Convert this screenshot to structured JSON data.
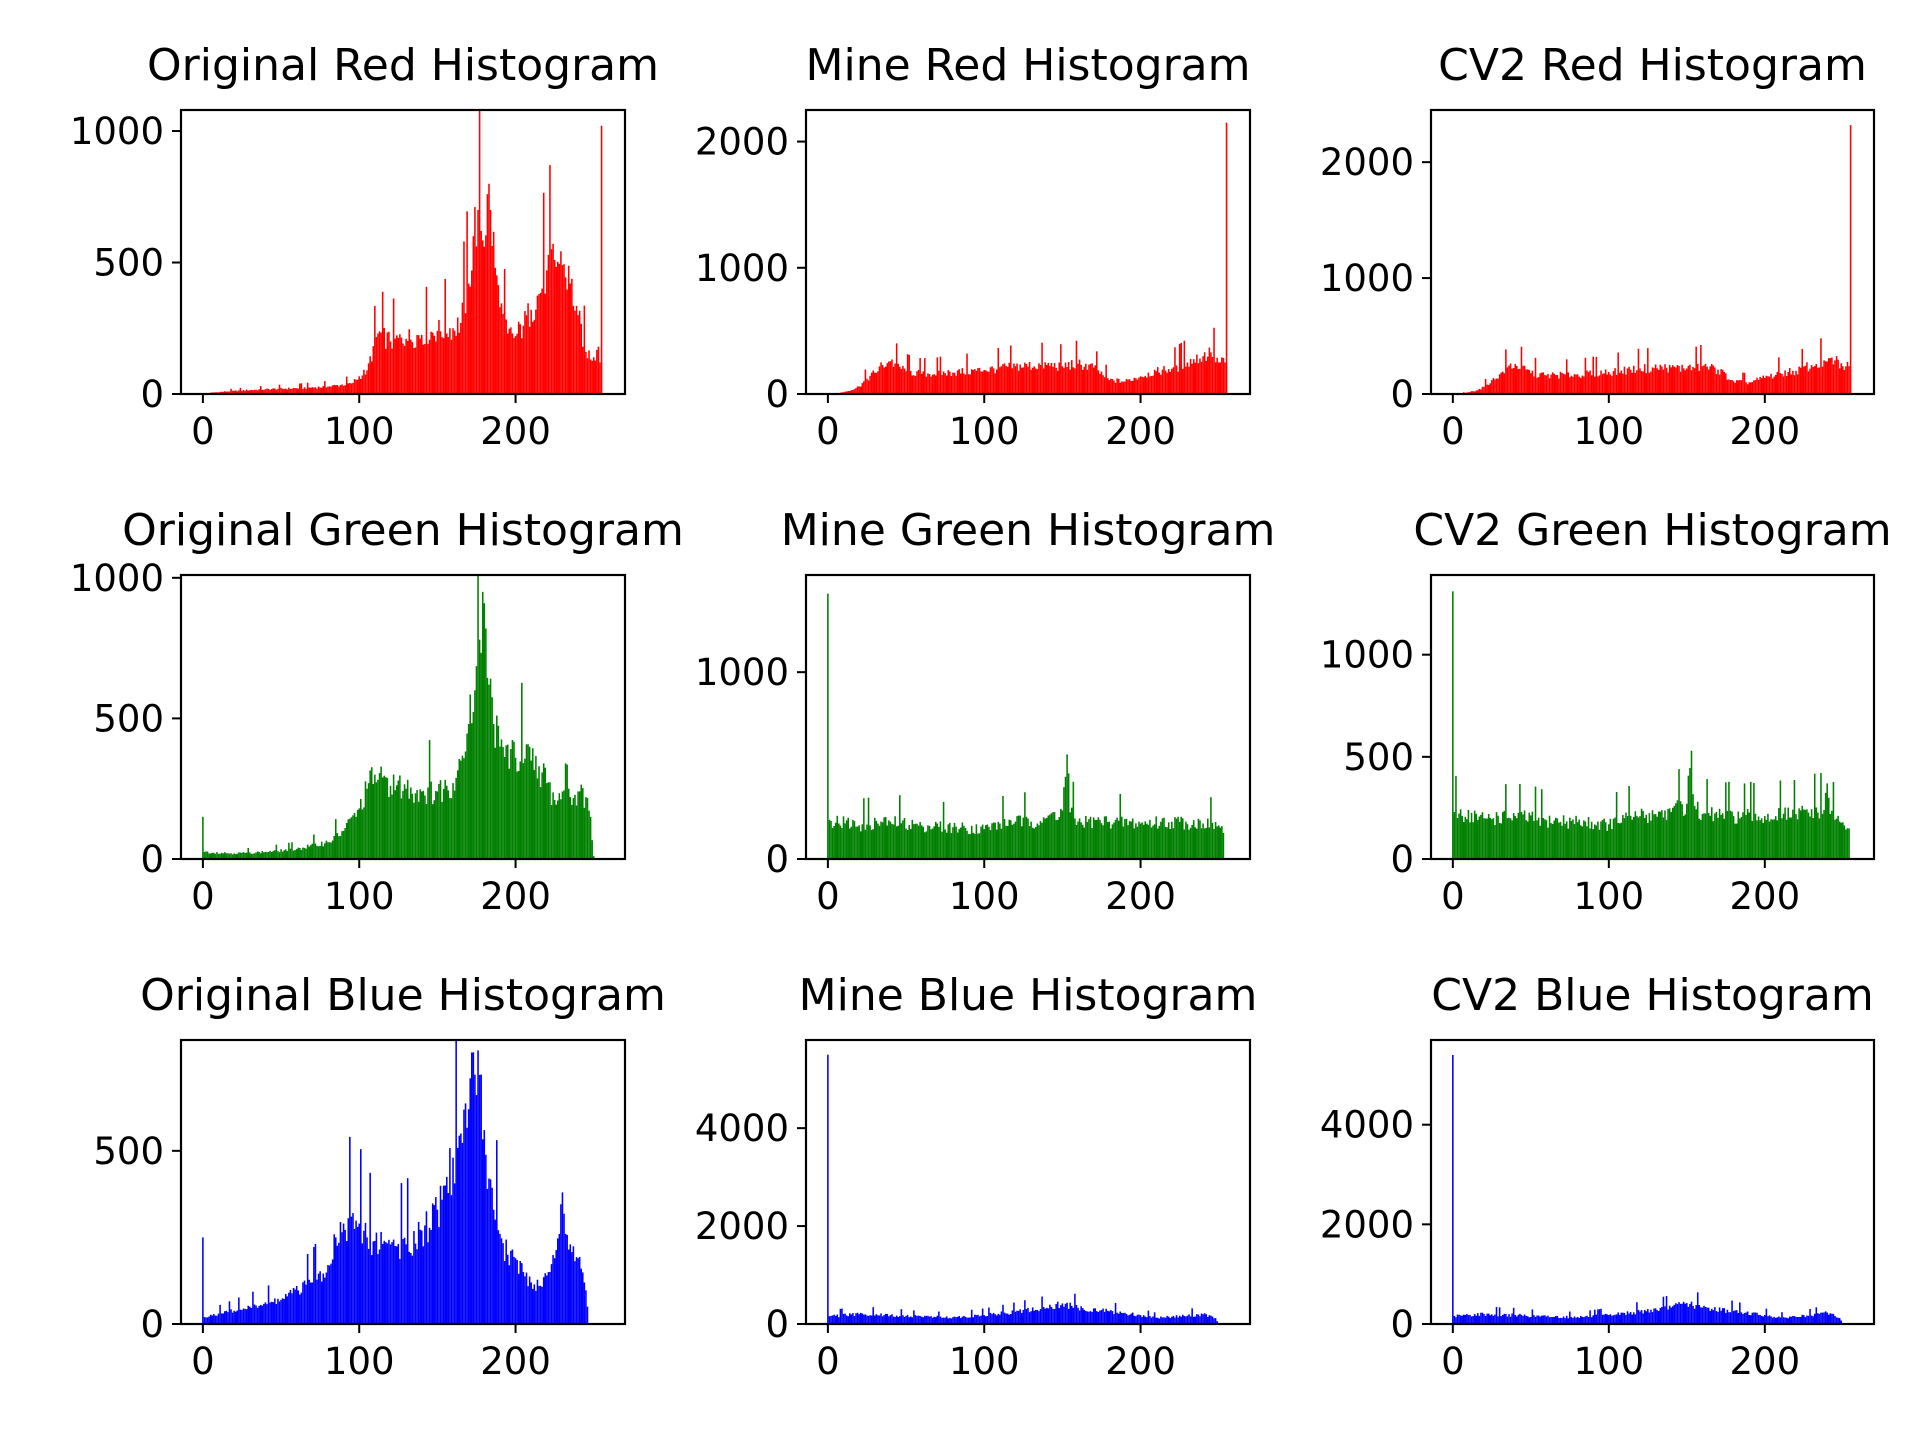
{
  "chart_data": [
    {
      "type": "bar",
      "title": "Original Red Histogram",
      "color": "#ff0000",
      "xlim": [
        -14,
        270
      ],
      "ylim": [
        0,
        1080
      ],
      "xticks": [
        0,
        100,
        200
      ],
      "yticks": [
        0,
        500,
        1000
      ],
      "profile": [
        [
          0,
          0
        ],
        [
          5,
          5
        ],
        [
          20,
          12
        ],
        [
          40,
          18
        ],
        [
          60,
          22
        ],
        [
          80,
          28
        ],
        [
          95,
          40
        ],
        [
          105,
          90
        ],
        [
          112,
          230
        ],
        [
          120,
          200
        ],
        [
          130,
          210
        ],
        [
          140,
          225
        ],
        [
          150,
          240
        ],
        [
          160,
          250
        ],
        [
          165,
          270
        ],
        [
          170,
          420
        ],
        [
          173,
          600
        ],
        [
          176,
          700
        ],
        [
          178,
          620
        ],
        [
          180,
          560
        ],
        [
          182,
          760
        ],
        [
          184,
          700
        ],
        [
          187,
          480
        ],
        [
          190,
          330
        ],
        [
          195,
          230
        ],
        [
          200,
          220
        ],
        [
          205,
          260
        ],
        [
          210,
          320
        ],
        [
          215,
          380
        ],
        [
          220,
          470
        ],
        [
          225,
          510
        ],
        [
          230,
          490
        ],
        [
          235,
          420
        ],
        [
          240,
          300
        ],
        [
          245,
          160
        ],
        [
          250,
          140
        ],
        [
          253,
          180
        ],
        [
          254,
          120
        ],
        [
          255,
          1020
        ]
      ]
    },
    {
      "type": "bar",
      "title": "Mine Red Histogram",
      "color": "#ff0000",
      "xlim": [
        -14,
        270
      ],
      "ylim": [
        0,
        2250
      ],
      "xticks": [
        0,
        100,
        200
      ],
      "yticks": [
        0,
        1000,
        2000
      ],
      "profile": [
        [
          0,
          0
        ],
        [
          8,
          10
        ],
        [
          15,
          30
        ],
        [
          20,
          60
        ],
        [
          25,
          120
        ],
        [
          30,
          170
        ],
        [
          35,
          230
        ],
        [
          40,
          260
        ],
        [
          50,
          180
        ],
        [
          60,
          160
        ],
        [
          80,
          170
        ],
        [
          100,
          190
        ],
        [
          120,
          220
        ],
        [
          140,
          230
        ],
        [
          150,
          220
        ],
        [
          160,
          240
        ],
        [
          170,
          210
        ],
        [
          180,
          110
        ],
        [
          190,
          100
        ],
        [
          200,
          140
        ],
        [
          210,
          180
        ],
        [
          220,
          200
        ],
        [
          230,
          250
        ],
        [
          240,
          300
        ],
        [
          245,
          330
        ],
        [
          250,
          250
        ],
        [
          254,
          250
        ],
        [
          255,
          2150
        ]
      ]
    },
    {
      "type": "bar",
      "title": "CV2 Red Histogram",
      "color": "#ff0000",
      "xlim": [
        -14,
        270
      ],
      "ylim": [
        0,
        2450
      ],
      "xticks": [
        0,
        100,
        200
      ],
      "yticks": [
        0,
        1000,
        2000
      ],
      "profile": [
        [
          0,
          0
        ],
        [
          8,
          10
        ],
        [
          15,
          30
        ],
        [
          20,
          60
        ],
        [
          25,
          120
        ],
        [
          30,
          170
        ],
        [
          35,
          230
        ],
        [
          40,
          260
        ],
        [
          50,
          180
        ],
        [
          60,
          160
        ],
        [
          80,
          170
        ],
        [
          100,
          190
        ],
        [
          120,
          220
        ],
        [
          140,
          230
        ],
        [
          150,
          220
        ],
        [
          160,
          240
        ],
        [
          170,
          210
        ],
        [
          180,
          110
        ],
        [
          190,
          100
        ],
        [
          200,
          140
        ],
        [
          210,
          180
        ],
        [
          220,
          200
        ],
        [
          230,
          250
        ],
        [
          240,
          280
        ],
        [
          245,
          290
        ],
        [
          250,
          240
        ],
        [
          254,
          240
        ],
        [
          255,
          2320
        ]
      ]
    },
    {
      "type": "bar",
      "title": "Original Green Histogram",
      "color": "#008000",
      "xlim": [
        -14,
        270
      ],
      "ylim": [
        0,
        1010
      ],
      "xticks": [
        0,
        100,
        200
      ],
      "yticks": [
        0,
        500,
        1000
      ],
      "profile": [
        [
          0,
          150
        ],
        [
          1,
          25
        ],
        [
          20,
          20
        ],
        [
          40,
          25
        ],
        [
          60,
          35
        ],
        [
          80,
          60
        ],
        [
          90,
          100
        ],
        [
          100,
          180
        ],
        [
          105,
          250
        ],
        [
          110,
          300
        ],
        [
          115,
          290
        ],
        [
          120,
          260
        ],
        [
          130,
          250
        ],
        [
          140,
          240
        ],
        [
          150,
          240
        ],
        [
          160,
          270
        ],
        [
          165,
          350
        ],
        [
          170,
          480
        ],
        [
          174,
          600
        ],
        [
          177,
          780
        ],
        [
          179,
          950
        ],
        [
          181,
          820
        ],
        [
          183,
          620
        ],
        [
          186,
          480
        ],
        [
          190,
          400
        ],
        [
          200,
          360
        ],
        [
          210,
          350
        ],
        [
          215,
          330
        ],
        [
          220,
          270
        ],
        [
          225,
          210
        ],
        [
          230,
          240
        ],
        [
          232,
          340
        ],
        [
          235,
          220
        ],
        [
          240,
          240
        ],
        [
          245,
          220
        ],
        [
          248,
          150
        ],
        [
          250,
          10
        ],
        [
          251,
          0
        ]
      ]
    },
    {
      "type": "bar",
      "title": "Mine Green Histogram",
      "color": "#008000",
      "xlim": [
        -14,
        270
      ],
      "ylim": [
        0,
        1520
      ],
      "xticks": [
        0,
        100,
        200
      ],
      "yticks": [
        0,
        1000
      ],
      "profile": [
        [
          0,
          1420
        ],
        [
          1,
          210
        ],
        [
          20,
          180
        ],
        [
          40,
          200
        ],
        [
          60,
          180
        ],
        [
          80,
          170
        ],
        [
          100,
          160
        ],
        [
          110,
          190
        ],
        [
          120,
          200
        ],
        [
          130,
          200
        ],
        [
          140,
          220
        ],
        [
          150,
          260
        ],
        [
          153,
          560
        ],
        [
          155,
          250
        ],
        [
          160,
          200
        ],
        [
          180,
          200
        ],
        [
          200,
          190
        ],
        [
          220,
          200
        ],
        [
          240,
          190
        ],
        [
          250,
          180
        ],
        [
          253,
          140
        ],
        [
          254,
          0
        ]
      ]
    },
    {
      "type": "bar",
      "title": "CV2 Green Histogram",
      "color": "#008000",
      "xlim": [
        -14,
        270
      ],
      "ylim": [
        0,
        1390
      ],
      "xticks": [
        0,
        100,
        200
      ],
      "yticks": [
        0,
        500,
        1000
      ],
      "profile": [
        [
          0,
          1310
        ],
        [
          1,
          230
        ],
        [
          20,
          200
        ],
        [
          40,
          210
        ],
        [
          60,
          190
        ],
        [
          80,
          180
        ],
        [
          100,
          170
        ],
        [
          110,
          200
        ],
        [
          120,
          210
        ],
        [
          130,
          220
        ],
        [
          140,
          230
        ],
        [
          150,
          270
        ],
        [
          153,
          530
        ],
        [
          155,
          260
        ],
        [
          160,
          220
        ],
        [
          180,
          210
        ],
        [
          200,
          210
        ],
        [
          220,
          220
        ],
        [
          238,
          240
        ],
        [
          240,
          370
        ],
        [
          242,
          220
        ],
        [
          250,
          180
        ],
        [
          254,
          150
        ],
        [
          255,
          0
        ]
      ]
    },
    {
      "type": "bar",
      "title": "Original Blue Histogram",
      "color": "#0000ff",
      "xlim": [
        -14,
        270
      ],
      "ylim": [
        0,
        820
      ],
      "xticks": [
        0,
        100,
        200
      ],
      "yticks": [
        0,
        500
      ],
      "profile": [
        [
          0,
          250
        ],
        [
          1,
          20
        ],
        [
          10,
          30
        ],
        [
          30,
          50
        ],
        [
          50,
          70
        ],
        [
          70,
          120
        ],
        [
          80,
          170
        ],
        [
          85,
          250
        ],
        [
          90,
          290
        ],
        [
          95,
          310
        ],
        [
          100,
          290
        ],
        [
          105,
          250
        ],
        [
          110,
          240
        ],
        [
          120,
          230
        ],
        [
          130,
          230
        ],
        [
          140,
          270
        ],
        [
          150,
          330
        ],
        [
          155,
          400
        ],
        [
          160,
          480
        ],
        [
          165,
          550
        ],
        [
          170,
          620
        ],
        [
          174,
          720
        ],
        [
          176,
          790
        ],
        [
          178,
          720
        ],
        [
          180,
          560
        ],
        [
          183,
          420
        ],
        [
          186,
          330
        ],
        [
          190,
          260
        ],
        [
          195,
          200
        ],
        [
          200,
          190
        ],
        [
          205,
          150
        ],
        [
          210,
          120
        ],
        [
          215,
          110
        ],
        [
          220,
          140
        ],
        [
          225,
          190
        ],
        [
          228,
          260
        ],
        [
          230,
          380
        ],
        [
          232,
          260
        ],
        [
          235,
          230
        ],
        [
          240,
          190
        ],
        [
          244,
          120
        ],
        [
          246,
          50
        ],
        [
          247,
          0
        ]
      ]
    },
    {
      "type": "bar",
      "title": "Mine Blue Histogram",
      "color": "#0000ff",
      "xlim": [
        -14,
        270
      ],
      "ylim": [
        0,
        5800
      ],
      "xticks": [
        0,
        100,
        200
      ],
      "yticks": [
        0,
        2000,
        4000
      ],
      "profile": [
        [
          0,
          5500
        ],
        [
          1,
          160
        ],
        [
          20,
          200
        ],
        [
          40,
          180
        ],
        [
          60,
          150
        ],
        [
          80,
          140
        ],
        [
          100,
          180
        ],
        [
          120,
          250
        ],
        [
          140,
          330
        ],
        [
          150,
          420
        ],
        [
          160,
          330
        ],
        [
          180,
          260
        ],
        [
          200,
          180
        ],
        [
          210,
          130
        ],
        [
          230,
          170
        ],
        [
          240,
          200
        ],
        [
          248,
          120
        ],
        [
          250,
          0
        ]
      ]
    },
    {
      "type": "bar",
      "title": "CV2 Blue Histogram",
      "color": "#0000ff",
      "xlim": [
        -14,
        270
      ],
      "ylim": [
        0,
        5700
      ],
      "xticks": [
        0,
        100,
        200
      ],
      "yticks": [
        0,
        2000,
        4000
      ],
      "profile": [
        [
          0,
          5400
        ],
        [
          1,
          160
        ],
        [
          20,
          200
        ],
        [
          40,
          180
        ],
        [
          60,
          150
        ],
        [
          80,
          140
        ],
        [
          100,
          180
        ],
        [
          120,
          250
        ],
        [
          140,
          330
        ],
        [
          150,
          420
        ],
        [
          160,
          330
        ],
        [
          180,
          260
        ],
        [
          200,
          180
        ],
        [
          210,
          130
        ],
        [
          230,
          170
        ],
        [
          240,
          230
        ],
        [
          248,
          120
        ],
        [
          250,
          0
        ]
      ]
    }
  ]
}
